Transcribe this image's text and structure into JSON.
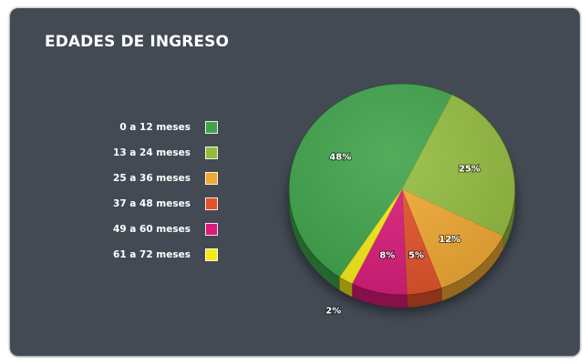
{
  "chart_data": {
    "type": "pie",
    "title": "EDADES DE INGRESO",
    "categories": [
      "0 a 12 meses",
      "13 a 24 meses",
      "25 a 36 meses",
      "37 a 48 meses",
      "49 a 60 meses",
      "61 a 72 meses"
    ],
    "values": [
      48,
      25,
      12,
      5,
      8,
      2
    ],
    "value_labels": [
      "48%",
      "25%",
      "12%",
      "5%",
      "8%",
      "2%"
    ],
    "colors": [
      "#3fa34a",
      "#93bc3f",
      "#f0a832",
      "#e2522a",
      "#d81b78",
      "#f6ea16"
    ],
    "legend_position": "left",
    "style": "3d"
  }
}
